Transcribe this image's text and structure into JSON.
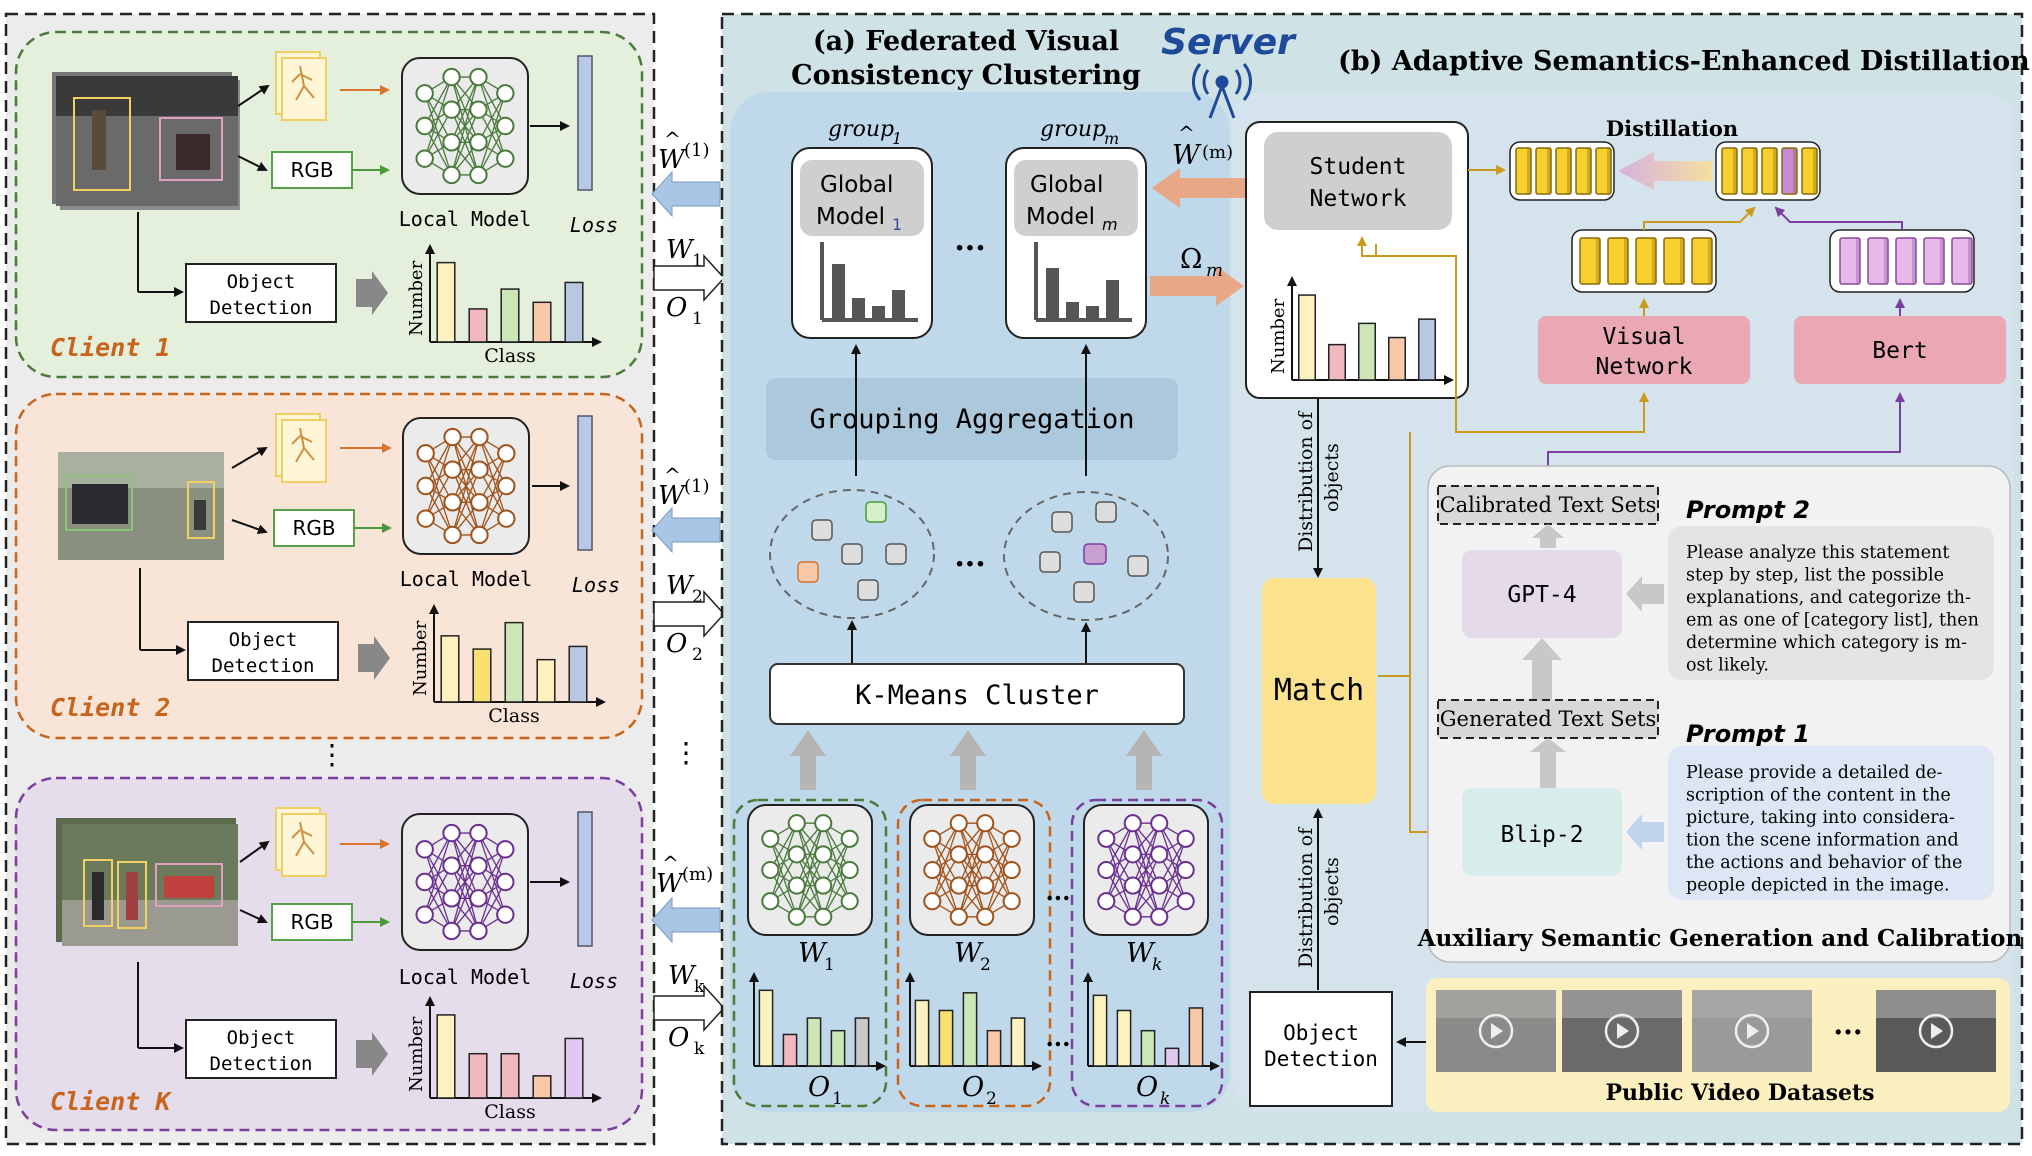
{
  "server": {
    "label": "Server"
  },
  "section_a": {
    "title_line1": "(a) Federated Visual",
    "title_line2": "Consistency Clustering"
  },
  "section_b": {
    "title": "(b)  Adaptive Semantics-Enhanced Distillation"
  },
  "clients": [
    {
      "name": "Client 1",
      "rgb": "RGB",
      "model": "Local Model",
      "loss": "Loss",
      "detection_line1": "Object",
      "detection_line2": "Detection",
      "ylabel": "Number",
      "xlabel": "Class",
      "bars": [
        6,
        2.5,
        4,
        3,
        4.5
      ],
      "theme": "#4a7a3c",
      "bg": "#e4efdc"
    },
    {
      "name": "Client 2",
      "rgb": "RGB",
      "model": "Local Model",
      "loss": "Loss",
      "detection_line1": "Object",
      "detection_line2": "Detection",
      "ylabel": "Number",
      "xlabel": "Class",
      "bars": [
        5,
        4,
        6,
        3.2,
        4.2
      ],
      "theme": "#c8641c",
      "bg": "#f9e5d8"
    },
    {
      "name": "Client K",
      "rgb": "RGB",
      "model": "Local Model",
      "loss": "Loss",
      "detection_line1": "Object",
      "detection_line2": "Detection",
      "ylabel": "Number",
      "xlabel": "Class",
      "bars": [
        6,
        3.2,
        3.2,
        1.6,
        4.3
      ],
      "theme": "#7a3fa0",
      "bg": "#e6ddec"
    }
  ],
  "vdots": "⋮",
  "transfer": [
    {
      "down_sup": "(1)",
      "up_w": "W",
      "up_sub": "1",
      "up_o": "O",
      "up_osub": "1"
    },
    {
      "down_sup": "(1)",
      "up_w": "W",
      "up_sub": "2",
      "up_o": "O",
      "up_osub": "2"
    },
    {
      "down_sup": "(m)",
      "up_w": "W",
      "up_sub": "k",
      "up_o": "O",
      "up_osub": "k"
    }
  ],
  "w_hat": "W",
  "groups": [
    {
      "label": "group",
      "sub": "1",
      "model_line1": "Global",
      "model_line2": "Model",
      "model_sub": "1"
    },
    {
      "label": "group",
      "sub": "m",
      "model_line1": "Global",
      "model_line2": "Model",
      "model_sub": "m"
    }
  ],
  "ellipsis": "...",
  "grouping_aggregation": "Grouping Aggregation",
  "kmeans": "K-Means Cluster",
  "local_models": [
    {
      "w": "W",
      "wsub": "1",
      "o": "O",
      "osub": "1"
    },
    {
      "w": "W",
      "wsub": "2",
      "o": "O",
      "osub": "2"
    },
    {
      "w": "W",
      "wsub": "k",
      "o": "O",
      "osub": "k"
    }
  ],
  "server_arrows": {
    "w_hat_sup": "(m)",
    "omega": "Ω",
    "omega_sub": "m"
  },
  "student": {
    "line1": "Student",
    "line2": "Network",
    "ylabel": "Number"
  },
  "distillation": "Distillation",
  "visual_network": {
    "line1": "Visual",
    "line2": "Network"
  },
  "bert": "Bert",
  "dist_objects_line1": "Distribution of",
  "dist_objects_line2": "objects",
  "match": "Match",
  "object_detection": {
    "line1": "Object",
    "line2": "Detection"
  },
  "calibrated_text_sets": "Calibrated Text Sets",
  "generated_text_sets": "Generated Text Sets",
  "gpt4": "GPT-4",
  "blip2": "Blip-2",
  "prompt2": {
    "title": "Prompt 2",
    "lines": [
      "Please analyze this statement",
      "step by step, list the possible",
      "explanations, and categorize th-",
      "em as one of [category list], then",
      "determine which category is m-",
      "ost likely."
    ]
  },
  "prompt1": {
    "title": "Prompt 1",
    "lines": [
      "Please provide a detailed de-",
      "scription of the content in the",
      "picture, taking into considera-",
      "tion the scene information and",
      "the actions and behavior of the",
      "people depicted in the image."
    ]
  },
  "auxiliary_title": "Auxiliary Semantic Generation and Calibration",
  "public_video": "Public Video Datasets",
  "colors": {
    "green": "#4a7a3c",
    "orange": "#c8641c",
    "purple": "#7a3fa0",
    "server_bg": "#cfe3e6",
    "gold": "#c99a1c",
    "arrow_blue": "#a9c6e6"
  }
}
